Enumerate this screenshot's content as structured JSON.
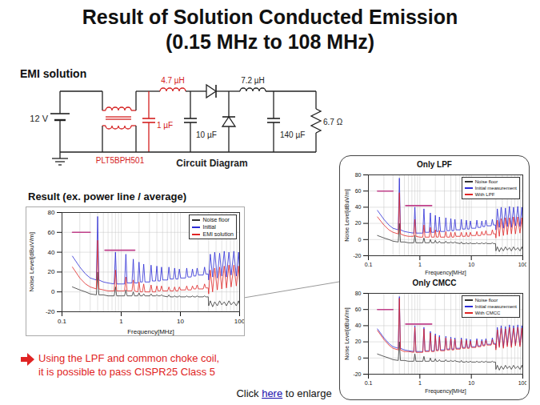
{
  "slide": {
    "title": [
      "Result of Solution Conducted Emission",
      "(0.15 MHz to 108 MHz)"
    ],
    "section": "EMI solution",
    "conclusion": [
      "Using the LPF and common choke coil,",
      "it is possible to pass CISPR25 Class 5"
    ],
    "click": {
      "before": "Click",
      "link": "here",
      "after": "to enlarge"
    }
  },
  "circuit": {
    "caption": "Circuit Diagram",
    "source": "12 V",
    "cmcc": "PLT5BPH501",
    "lpf_inductor": "4.7 µH",
    "lpf_capacitor": "1 µF",
    "input_capacitor": "10 µF",
    "output_inductor": "7.2 µH",
    "output_capacitor": "140 µF",
    "load": "6.7 Ω"
  },
  "chart_data": [
    {
      "type": "line",
      "title": "Result (ex. power line / average)",
      "x_label": "Frequency[MHz]",
      "y_label": "Noise Level[dBuV/m]",
      "log": "x",
      "xlim": [
        0.1,
        100
      ],
      "ylim": [
        -20,
        80
      ],
      "xticks": [
        0.1,
        1,
        10,
        100
      ],
      "yticks": [
        -20,
        0,
        20,
        40,
        60,
        80
      ],
      "grid": true,
      "legend": "top-right",
      "x": [
        0.15,
        0.2,
        0.25,
        0.3,
        0.38,
        0.4,
        0.42,
        0.5,
        0.6,
        0.76,
        0.8,
        0.84,
        1,
        1.14,
        1.2,
        1.26,
        1.52,
        1.6,
        1.68,
        1.9,
        2,
        2.1,
        2.28,
        2.4,
        2.52,
        3.04,
        3.2,
        3.36,
        3.8,
        4,
        4.2,
        4.56,
        4.8,
        5.04,
        6.08,
        6.4,
        6.72,
        7.6,
        8,
        8.4,
        9.1,
        9.6,
        10.1,
        12.2,
        12.8,
        13.4,
        15.2,
        16,
        16.8,
        18.2,
        19.2,
        20.2,
        24.3,
        25.6,
        26.9,
        29.5,
        30,
        32,
        35,
        38,
        42,
        46,
        50,
        55,
        60,
        66,
        72,
        80,
        88,
        96,
        100
      ],
      "series": [
        {
          "name": "Noise floor",
          "color": "#333333",
          "values": [
            5,
            2,
            0,
            -2,
            -3,
            20,
            -3,
            -3,
            -4,
            -4,
            5,
            -4,
            -4,
            -4,
            2,
            -4,
            -4,
            0,
            -4,
            -4,
            -1,
            -4,
            -4,
            -2,
            -4,
            -4,
            -2,
            -4,
            -4,
            -3,
            -4,
            -4,
            -3,
            -4,
            -5,
            -3,
            -5,
            -5,
            -4,
            -5,
            -5,
            -4,
            -5,
            -5,
            -4,
            -5,
            -5,
            -4,
            -5,
            -5,
            -4,
            -5,
            -5,
            -4,
            -5,
            -5,
            -14,
            -9,
            -15,
            -10,
            -14,
            -9,
            -13,
            -10,
            -14,
            -9,
            -13,
            -10,
            -14,
            -9,
            -13
          ]
        },
        {
          "name": "Initial",
          "color": "#2b2bd6",
          "values": [
            36,
            25,
            18,
            14,
            12,
            76,
            12,
            10,
            9,
            8,
            40,
            8,
            8,
            8,
            38,
            9,
            9,
            33,
            9,
            9,
            30,
            10,
            10,
            28,
            10,
            10,
            27,
            11,
            11,
            26,
            11,
            11,
            25,
            12,
            12,
            25,
            13,
            13,
            24,
            13,
            13,
            23,
            14,
            14,
            24,
            15,
            15,
            23,
            16,
            16,
            24,
            17,
            17,
            25,
            18,
            18,
            12,
            38,
            15,
            40,
            14,
            39,
            16,
            41,
            15,
            40,
            17,
            41,
            16,
            40,
            18
          ]
        },
        {
          "name": "EMI solution",
          "color": "#e02424",
          "values": [
            25,
            14,
            8,
            5,
            3,
            52,
            3,
            2,
            1,
            1,
            22,
            1,
            1,
            1,
            15,
            1,
            1,
            12,
            1,
            0,
            10,
            0,
            0,
            8,
            0,
            0,
            7,
            0,
            0,
            6,
            1,
            1,
            6,
            1,
            1,
            5,
            1,
            1,
            5,
            1,
            1,
            5,
            2,
            2,
            6,
            2,
            2,
            6,
            3,
            3,
            7,
            3,
            3,
            8,
            4,
            4,
            -2,
            22,
            0,
            24,
            2,
            25,
            3,
            26,
            4,
            27,
            5,
            27,
            6,
            26,
            8
          ]
        },
        {
          "color": "#c0408a",
          "x": [
            0.15,
            0.3,
            0.4,
            0.53,
            1.7
          ],
          "values": [
            60,
            60,
            null,
            42,
            42
          ]
        }
      ]
    },
    {
      "type": "line",
      "title": "Only LPF",
      "x_label": "Frequency[MHz]",
      "y_label": "Noise Level[dBuV/m]",
      "log": "x",
      "xlim": [
        0.1,
        100
      ],
      "ylim": [
        -20,
        80
      ],
      "xticks": [
        0.1,
        1,
        10,
        100
      ],
      "yticks": [
        -20,
        0,
        20,
        40,
        60,
        80
      ],
      "grid": true,
      "legend": "top-right",
      "x": [
        0.15,
        0.2,
        0.25,
        0.3,
        0.38,
        0.4,
        0.42,
        0.5,
        0.6,
        0.76,
        0.8,
        0.84,
        1,
        1.14,
        1.2,
        1.26,
        1.52,
        1.6,
        1.68,
        1.9,
        2,
        2.1,
        2.28,
        2.4,
        2.52,
        3.04,
        3.2,
        3.36,
        3.8,
        4,
        4.2,
        4.56,
        4.8,
        5.04,
        6.08,
        6.4,
        6.72,
        7.6,
        8,
        8.4,
        9.1,
        9.6,
        10.1,
        12.2,
        12.8,
        13.4,
        15.2,
        16,
        16.8,
        18.2,
        19.2,
        20.2,
        24.3,
        25.6,
        26.9,
        29.5,
        30,
        32,
        35,
        38,
        42,
        46,
        50,
        55,
        60,
        66,
        72,
        80,
        88,
        96,
        100
      ],
      "series": [
        {
          "name": "Noise floor",
          "color": "#333333",
          "values": [
            5,
            2,
            0,
            -2,
            -3,
            20,
            -3,
            -3,
            -4,
            -4,
            5,
            -4,
            -4,
            -4,
            2,
            -4,
            -4,
            0,
            -4,
            -4,
            -1,
            -4,
            -4,
            -2,
            -4,
            -4,
            -2,
            -4,
            -4,
            -3,
            -4,
            -4,
            -3,
            -4,
            -5,
            -3,
            -5,
            -5,
            -4,
            -5,
            -5,
            -4,
            -5,
            -5,
            -4,
            -5,
            -5,
            -4,
            -5,
            -5,
            -4,
            -5,
            -5,
            -4,
            -5,
            -5,
            -14,
            -9,
            -15,
            -10,
            -14,
            -9,
            -13,
            -10,
            -14,
            -9,
            -13,
            -10,
            -14,
            -9,
            -13
          ]
        },
        {
          "name": "Initial measurement",
          "color": "#2b2bd6",
          "values": [
            36,
            25,
            18,
            14,
            12,
            76,
            12,
            10,
            9,
            8,
            40,
            8,
            8,
            8,
            38,
            9,
            9,
            33,
            9,
            9,
            30,
            10,
            10,
            28,
            10,
            10,
            27,
            11,
            11,
            26,
            11,
            11,
            25,
            12,
            12,
            25,
            13,
            13,
            24,
            13,
            13,
            23,
            14,
            14,
            24,
            15,
            15,
            23,
            16,
            16,
            24,
            17,
            17,
            25,
            18,
            18,
            12,
            38,
            15,
            40,
            14,
            39,
            16,
            41,
            15,
            40,
            17,
            41,
            16,
            40,
            18
          ]
        },
        {
          "name": "With LPF",
          "color": "#e02424",
          "values": [
            28,
            18,
            12,
            9,
            7,
            58,
            7,
            5,
            4,
            4,
            25,
            4,
            3,
            3,
            18,
            3,
            3,
            15,
            3,
            3,
            12,
            3,
            3,
            11,
            3,
            3,
            10,
            3,
            3,
            9,
            3,
            3,
            9,
            4,
            4,
            9,
            4,
            4,
            9,
            4,
            4,
            9,
            5,
            5,
            10,
            5,
            5,
            10,
            6,
            6,
            11,
            6,
            6,
            12,
            7,
            7,
            2,
            24,
            4,
            26,
            5,
            27,
            6,
            27,
            7,
            28,
            7,
            28,
            8,
            27,
            9
          ]
        },
        {
          "color": "#c0408a",
          "x": [
            0.15,
            0.3,
            0.4,
            0.53,
            1.7
          ],
          "values": [
            60,
            60,
            null,
            42,
            42
          ]
        }
      ]
    },
    {
      "type": "line",
      "title": "Only CMCC",
      "x_label": "Frequency[MHz]",
      "y_label": "Noise Level[dBuV/m]",
      "log": "x",
      "xlim": [
        0.1,
        100
      ],
      "ylim": [
        -20,
        80
      ],
      "xticks": [
        0.1,
        1,
        10,
        100
      ],
      "yticks": [
        -20,
        0,
        20,
        40,
        60,
        80
      ],
      "grid": true,
      "legend": "top-right",
      "x": [
        0.15,
        0.2,
        0.25,
        0.3,
        0.38,
        0.4,
        0.42,
        0.5,
        0.6,
        0.76,
        0.8,
        0.84,
        1,
        1.14,
        1.2,
        1.26,
        1.52,
        1.6,
        1.68,
        1.9,
        2,
        2.1,
        2.28,
        2.4,
        2.52,
        3.04,
        3.2,
        3.36,
        3.8,
        4,
        4.2,
        4.56,
        4.8,
        5.04,
        6.08,
        6.4,
        6.72,
        7.6,
        8,
        8.4,
        9.1,
        9.6,
        10.1,
        12.2,
        12.8,
        13.4,
        15.2,
        16,
        16.8,
        18.2,
        19.2,
        20.2,
        24.3,
        25.6,
        26.9,
        29.5,
        30,
        32,
        35,
        38,
        42,
        46,
        50,
        55,
        60,
        66,
        72,
        80,
        88,
        96,
        100
      ],
      "series": [
        {
          "name": "Noise floor",
          "color": "#333333",
          "values": [
            5,
            2,
            0,
            -2,
            -3,
            20,
            -3,
            -3,
            -4,
            -4,
            5,
            -4,
            -4,
            -4,
            2,
            -4,
            -4,
            0,
            -4,
            -4,
            -1,
            -4,
            -4,
            -2,
            -4,
            -4,
            -2,
            -4,
            -4,
            -3,
            -4,
            -4,
            -3,
            -4,
            -5,
            -3,
            -5,
            -5,
            -4,
            -5,
            -5,
            -4,
            -5,
            -5,
            -4,
            -5,
            -5,
            -4,
            -5,
            -5,
            -4,
            -5,
            -5,
            -4,
            -5,
            -5,
            -14,
            -9,
            -15,
            -10,
            -14,
            -9,
            -13,
            -10,
            -14,
            -9,
            -13,
            -10,
            -14,
            -9,
            -13
          ]
        },
        {
          "name": "Initial measurement",
          "color": "#2b2bd6",
          "values": [
            36,
            25,
            18,
            14,
            12,
            76,
            12,
            10,
            9,
            8,
            40,
            8,
            8,
            8,
            38,
            9,
            9,
            33,
            9,
            9,
            30,
            10,
            10,
            28,
            10,
            10,
            27,
            11,
            11,
            26,
            11,
            11,
            25,
            12,
            12,
            25,
            13,
            13,
            24,
            13,
            13,
            23,
            14,
            14,
            24,
            15,
            15,
            23,
            16,
            16,
            24,
            17,
            17,
            25,
            18,
            18,
            12,
            38,
            15,
            40,
            14,
            39,
            16,
            41,
            15,
            40,
            17,
            41,
            16,
            40,
            18
          ]
        },
        {
          "name": "With CMCC",
          "color": "#e02424",
          "values": [
            34,
            23,
            16,
            12,
            10,
            74,
            10,
            8,
            8,
            7,
            38,
            7,
            7,
            7,
            36,
            8,
            8,
            31,
            8,
            8,
            28,
            9,
            9,
            26,
            9,
            9,
            25,
            10,
            10,
            24,
            10,
            10,
            23,
            11,
            11,
            23,
            12,
            12,
            22,
            12,
            12,
            21,
            13,
            13,
            22,
            14,
            14,
            21,
            15,
            15,
            22,
            16,
            16,
            23,
            17,
            17,
            10,
            35,
            13,
            37,
            12,
            36,
            14,
            38,
            13,
            37,
            15,
            38,
            14,
            37,
            16
          ]
        },
        {
          "color": "#c0408a",
          "x": [
            0.15,
            0.3,
            0.4,
            0.53,
            1.7
          ],
          "values": [
            60,
            60,
            null,
            42,
            42
          ]
        }
      ]
    }
  ]
}
